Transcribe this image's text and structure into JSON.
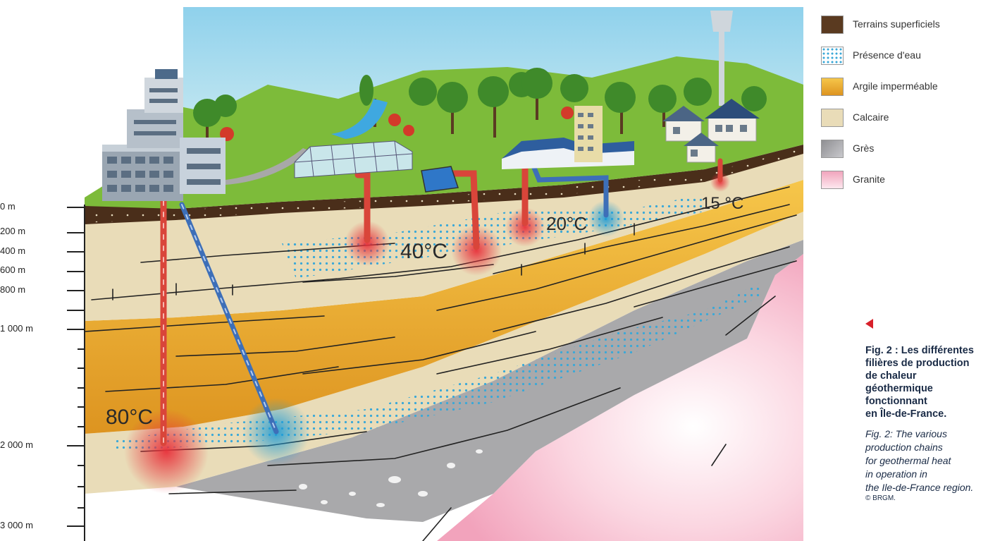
{
  "depth_axis": {
    "labels": [
      "0 m",
      "200 m",
      "400 m",
      "600 m",
      "800 m",
      "1 000 m",
      "2 000 m",
      "3 000 m"
    ]
  },
  "temperatures": [
    "80°C",
    "40°C",
    "20°C",
    "15 °C"
  ],
  "legend": [
    {
      "label": "Terrains superficiels",
      "color": "#5a3a20"
    },
    {
      "label": "Présence d'eau",
      "color": "#3aa8d8"
    },
    {
      "label": "Argile imperméable",
      "color": "#e8a830"
    },
    {
      "label": "Calcaire",
      "color": "#e9dcb8"
    },
    {
      "label": "Grès",
      "color": "#a8a8a8"
    },
    {
      "label": "Granite",
      "color": "#f1a5bd"
    }
  ],
  "caption": {
    "fr": "Fig. 2 : Les différentes\nfilières de production\nde chaleur géothermique\nfonctionnant\nen Île-de-France.",
    "en": "Fig. 2: The various\nproduction chains\nfor geothermal heat\nin operation in\nthe Ile-de-France region.",
    "credit": "© BRGM."
  },
  "colors": {
    "sky": "#bfe3ef",
    "grass": "#7dbb3a",
    "soil": "#4a2e1a",
    "limestone": "#e9dcb8",
    "clay": "#e8a830",
    "sandstone": "#a9a9ab",
    "granite": "#f4b9cc",
    "hot_pipe": "#d9453a",
    "cold_pipe": "#3d6fb8"
  }
}
